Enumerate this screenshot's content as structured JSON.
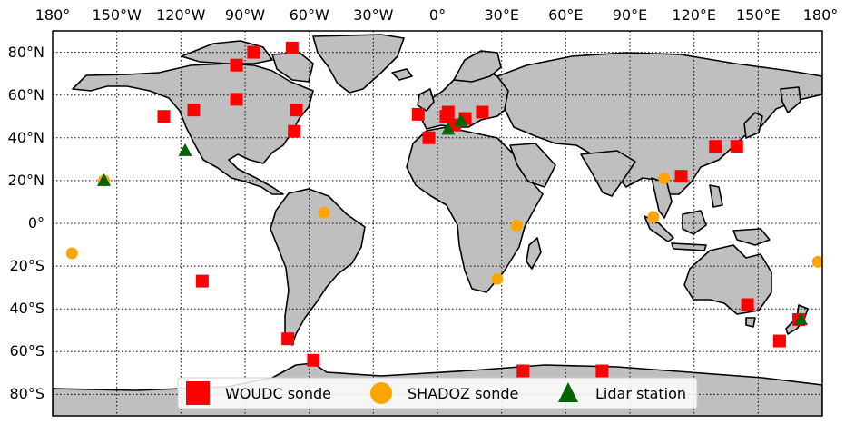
{
  "map": {
    "projection": "equirectangular",
    "lon_range": [
      -180,
      180
    ],
    "lat_range": [
      -90,
      90
    ],
    "lon_ticks": [
      "180°",
      "150°W",
      "120°W",
      "90°W",
      "60°W",
      "30°W",
      "0°",
      "30°E",
      "60°E",
      "90°E",
      "120°E",
      "150°E",
      "180°"
    ],
    "lat_ticks": [
      "80°N",
      "60°N",
      "40°N",
      "20°N",
      "0°",
      "20°S",
      "40°S",
      "60°S",
      "80°S"
    ],
    "colors": {
      "land": "#bfbfbf",
      "ocean": "#ffffff",
      "coast": "#000000"
    }
  },
  "legend": {
    "placement": "bottom-center",
    "items": [
      {
        "label": "WOUDC sonde",
        "marker": "square",
        "color": "#ff0000"
      },
      {
        "label": "SHADOZ sonde",
        "marker": "circle",
        "color": "#ffa500"
      },
      {
        "label": "Lidar station",
        "marker": "triangle",
        "color": "#006400"
      }
    ]
  },
  "stations": {
    "woudc": [
      [
        -128,
        50
      ],
      [
        -114,
        53
      ],
      [
        -110,
        -27
      ],
      [
        -94,
        74
      ],
      [
        -86,
        80
      ],
      [
        -94,
        58
      ],
      [
        -68,
        82
      ],
      [
        -66,
        53
      ],
      [
        -67,
        43
      ],
      [
        -70,
        -54
      ],
      [
        -58,
        -64
      ],
      [
        -9,
        51
      ],
      [
        -4,
        40
      ],
      [
        4,
        50
      ],
      [
        5,
        52
      ],
      [
        8,
        46
      ],
      [
        13,
        49
      ],
      [
        21,
        52
      ],
      [
        40,
        -69
      ],
      [
        77,
        -69
      ],
      [
        114,
        22
      ],
      [
        130,
        36
      ],
      [
        140,
        36
      ],
      [
        145,
        -38
      ],
      [
        160,
        -55
      ],
      [
        169,
        -45
      ]
    ],
    "shadoz": [
      [
        -171,
        -14
      ],
      [
        -156,
        20
      ],
      [
        -53,
        5
      ],
      [
        37,
        -1
      ],
      [
        28,
        -26
      ],
      [
        106,
        21
      ],
      [
        101,
        3
      ],
      [
        178,
        -18
      ]
    ],
    "lidar": [
      [
        -156,
        20
      ],
      [
        -118,
        34
      ],
      [
        5,
        44
      ],
      [
        11,
        48
      ],
      [
        170,
        -45
      ]
    ]
  }
}
